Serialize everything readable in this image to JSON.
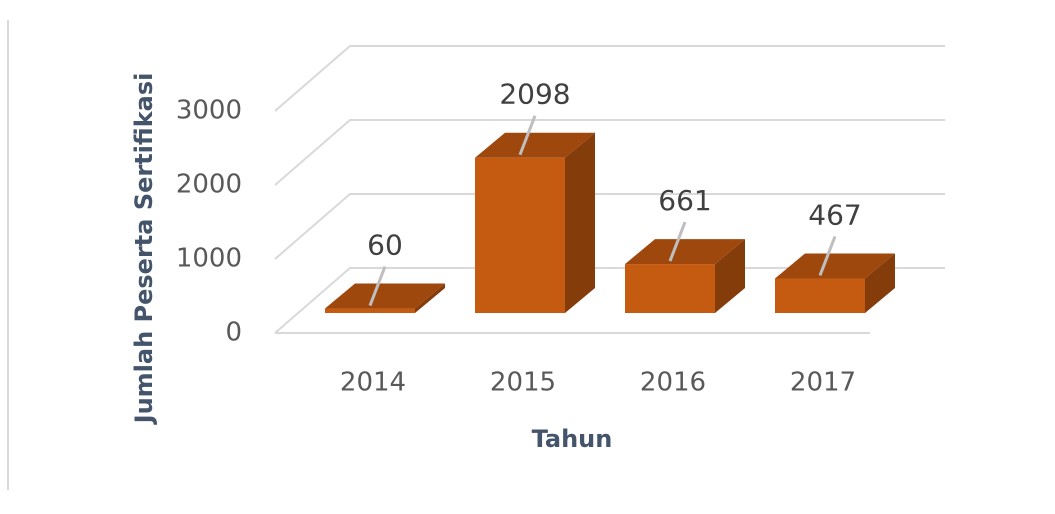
{
  "chart_data": {
    "type": "bar3d",
    "x_label": "Tahun",
    "y_label": "Jumlah Peserta Sertifikasi",
    "categories": [
      "2014",
      "2015",
      "2016",
      "2017"
    ],
    "values": [
      60,
      2098,
      661,
      467
    ],
    "color": "#c55a11",
    "ylim": [
      0,
      3000
    ],
    "yticks": [
      0,
      1000,
      2000,
      3000
    ],
    "grid": true
  }
}
